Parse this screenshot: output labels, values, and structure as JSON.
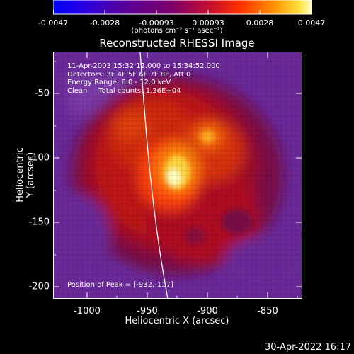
{
  "colorbar": {
    "ticks": [
      "-0.0047",
      "-0.0028",
      "-0.00093",
      "0.00093",
      "0.0028",
      "0.0047"
    ],
    "unit": "(photons cm⁻² s⁻¹ asec⁻²)"
  },
  "title": "Reconstructed RHESSI Image",
  "info": {
    "time": "11-Apr-2003 15:32:12.000 to 15:34:52.000",
    "detectors": "Detectors: 3F 4F 5F 6F 7F 8F, Att 0",
    "energy": "Energy Range: 6.0 - 12.0 keV",
    "clean": "Clean     Total counts: 1.36E+04"
  },
  "peak": "Position of Peak = [-932,-117]",
  "axes": {
    "xlabel": "Heliocentric X (arcsec)",
    "ylabel": "Heliocentric Y (arcsec)",
    "xticks": [
      "-1000",
      "-950",
      "-900",
      "-850"
    ],
    "yticks": [
      "-50",
      "-100",
      "-150",
      "-200"
    ]
  },
  "timestamp": "30-Apr-2022 16:17"
}
